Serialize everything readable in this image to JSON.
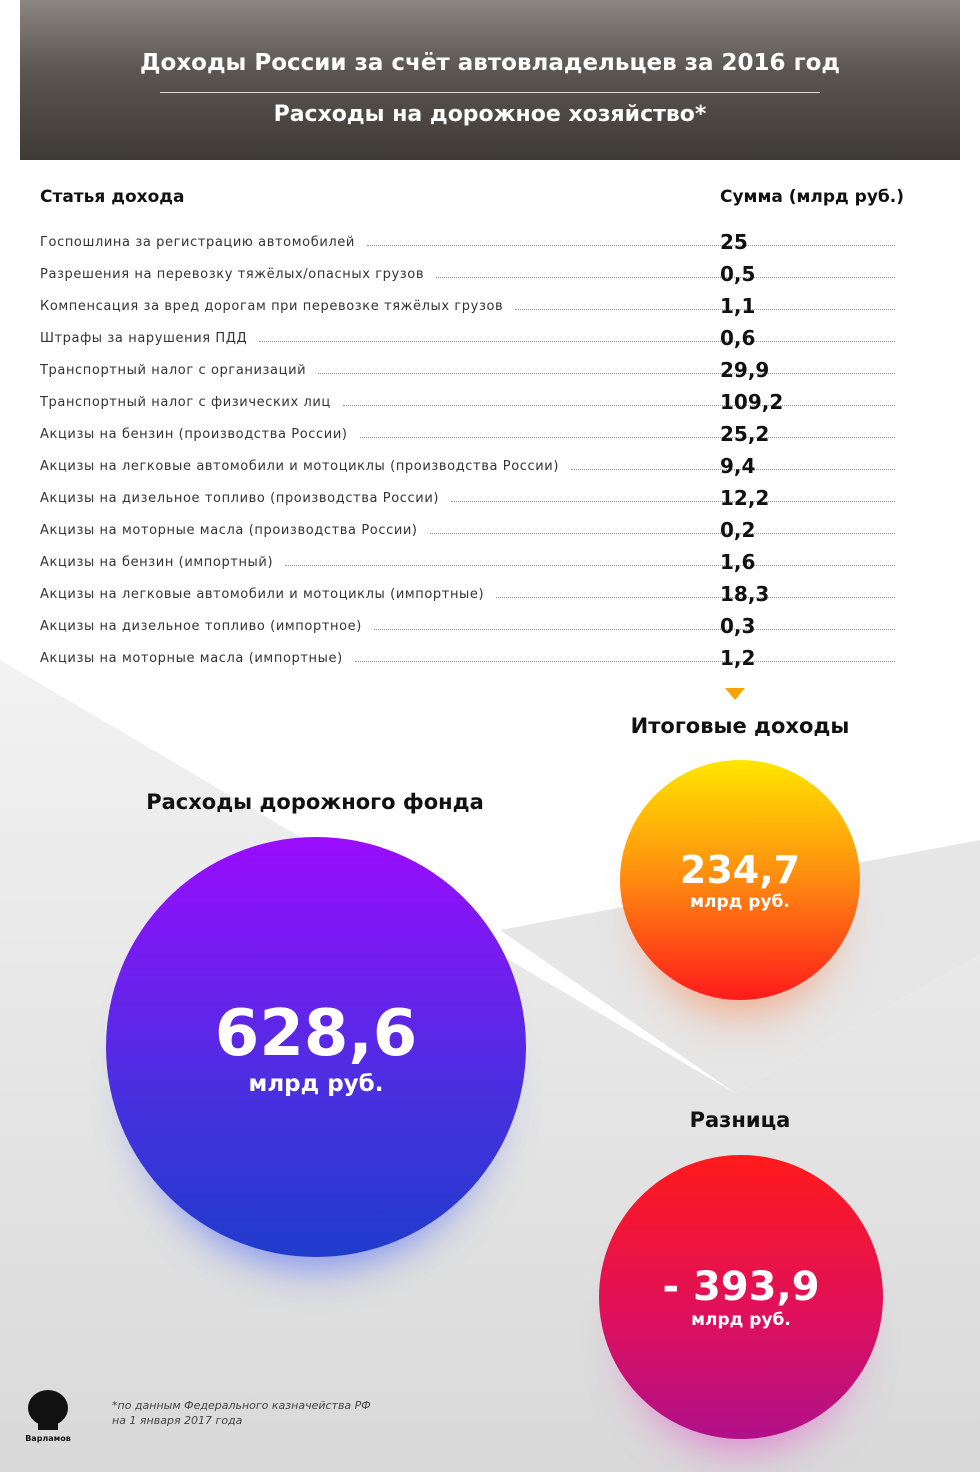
{
  "header": {
    "title": "Доходы России за счёт автовладельцев за 2016 год",
    "subtitle": "Расходы на дорожное хозяйство*"
  },
  "table": {
    "columns": [
      "Статья дохода",
      "Сумма (млрд руб.)"
    ],
    "rows": [
      [
        "Госпошлина за регистрацию автомобилей",
        "25"
      ],
      [
        "Разрешения на перевозку тяжёлых/опасных грузов",
        "0,5"
      ],
      [
        "Компенсация за вред дорогам при перевозке тяжёлых грузов",
        "1,1"
      ],
      [
        "Штрафы за нарушения ПДД",
        "0,6"
      ],
      [
        "Транспортный налог с организаций",
        "29,9"
      ],
      [
        "Транспортный налог с физических лиц",
        "109,2"
      ],
      [
        "Акцизы на бензин (производства России)",
        "25,2"
      ],
      [
        "Акцизы на легковые автомобили и мотоциклы (производства России)",
        "9,4"
      ],
      [
        "Акцизы на дизельное топливо (производства России)",
        "12,2"
      ],
      [
        "Акцизы на моторные масла (производства России)",
        "0,2"
      ],
      [
        "Акцизы на бензин (импортный)",
        "1,6"
      ],
      [
        "Акцизы на легковые автомобили и мотоциклы (импортные)",
        "18,3"
      ],
      [
        "Акцизы на дизельное топливо (импортное)",
        "0,3"
      ],
      [
        "Акцизы на моторные масла (импортные)",
        "1,2"
      ]
    ]
  },
  "summary": {
    "income": {
      "label": "Итоговые доходы",
      "value": "234,7",
      "unit": "млрд руб."
    },
    "expenses": {
      "label": "Расходы дорожного фонда",
      "value": "628,6",
      "unit": "млрд руб."
    },
    "difference": {
      "label": "Разница",
      "value": "- 393,9",
      "unit": "млрд руб."
    }
  },
  "footnote": [
    "*по данным Федерального казначейства РФ",
    "на 1 января 2017 года"
  ],
  "logo": "Варламов"
}
